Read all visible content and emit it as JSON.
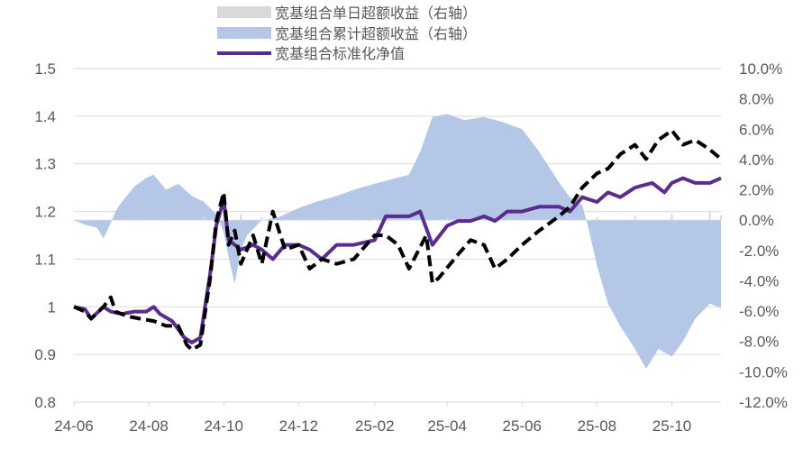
{
  "chart_data": {
    "type": "line",
    "title": "",
    "xlabel": "",
    "ylabel": "",
    "y2label": "",
    "xlim": [
      "2024-06-01",
      "2025-11-10"
    ],
    "ylim": [
      0.8,
      1.5
    ],
    "y2lim": [
      -0.12,
      0.1
    ],
    "x_ticks": [
      "24-06",
      "24-08",
      "24-10",
      "24-12",
      "25-02",
      "25-04",
      "25-06",
      "25-08",
      "25-10"
    ],
    "y_ticks": [
      "0.8",
      "0.9",
      "1",
      "1.1",
      "1.2",
      "1.3",
      "1.4",
      "1.5"
    ],
    "y2_ticks": [
      "-12.0%",
      "-10.0%",
      "-8.0%",
      "-6.0%",
      "-4.0%",
      "-2.0%",
      "0.0%",
      "2.0%",
      "4.0%",
      "6.0%",
      "8.0%",
      "10.0%"
    ],
    "legend_position": "top-center",
    "grid": "horizontal",
    "colors": {
      "daily_excess": "#d9d9d9",
      "cumulative_excess": "#b4c7e7",
      "nav": "#5b2c8f",
      "benchmark": "#000000",
      "axis": "#d9d9d9",
      "text": "#595959"
    },
    "series": [
      {
        "name": "宽基组合单日超额收益（右轴）",
        "type": "bar",
        "axis": "right",
        "points": [
          [
            "2024-06-01",
            0.0
          ],
          [
            "2024-07-01",
            0.0005
          ],
          [
            "2024-08-01",
            0.0005
          ],
          [
            "2024-09-01",
            0.0005
          ],
          [
            "2024-09-15",
            0.002
          ],
          [
            "2024-10-01",
            0.006
          ],
          [
            "2024-10-15",
            0.004
          ],
          [
            "2024-11-01",
            0.002
          ],
          [
            "2024-12-01",
            0.001
          ],
          [
            "2025-01-01",
            0.0005
          ],
          [
            "2025-02-01",
            0.001
          ],
          [
            "2025-03-01",
            0.001
          ],
          [
            "2025-04-01",
            0.0015
          ],
          [
            "2025-05-01",
            0.001
          ],
          [
            "2025-06-01",
            0.001
          ],
          [
            "2025-07-01",
            0.001
          ],
          [
            "2025-08-01",
            0.002
          ],
          [
            "2025-09-01",
            0.003
          ],
          [
            "2025-10-01",
            0.004
          ],
          [
            "2025-11-01",
            0.006
          ],
          [
            "2025-11-10",
            0.003
          ]
        ]
      },
      {
        "name": "宽基组合累计超额收益（右轴）",
        "type": "area",
        "axis": "right",
        "points": [
          [
            "2024-06-01",
            0.0
          ],
          [
            "2024-06-10",
            -0.003
          ],
          [
            "2024-06-20",
            -0.005
          ],
          [
            "2024-06-25",
            -0.012
          ],
          [
            "2024-07-01",
            -0.002
          ],
          [
            "2024-07-05",
            0.006
          ],
          [
            "2024-07-10",
            0.012
          ],
          [
            "2024-07-20",
            0.022
          ],
          [
            "2024-07-30",
            0.028
          ],
          [
            "2024-08-05",
            0.03
          ],
          [
            "2024-08-15",
            0.02
          ],
          [
            "2024-08-25",
            0.024
          ],
          [
            "2024-09-05",
            0.016
          ],
          [
            "2024-09-15",
            0.012
          ],
          [
            "2024-09-25",
            0.004
          ],
          [
            "2024-10-01",
            -0.008
          ],
          [
            "2024-10-06",
            -0.028
          ],
          [
            "2024-10-10",
            -0.042
          ],
          [
            "2024-10-15",
            -0.02
          ],
          [
            "2024-10-20",
            -0.01
          ],
          [
            "2024-11-01",
            0.0
          ],
          [
            "2024-11-15",
            0.002
          ],
          [
            "2024-12-01",
            0.008
          ],
          [
            "2024-12-15",
            0.012
          ],
          [
            "2025-01-01",
            0.016
          ],
          [
            "2025-01-15",
            0.02
          ],
          [
            "2025-02-01",
            0.024
          ],
          [
            "2025-02-15",
            0.027
          ],
          [
            "2025-03-01",
            0.03
          ],
          [
            "2025-03-10",
            0.045
          ],
          [
            "2025-03-20",
            0.068
          ],
          [
            "2025-04-01",
            0.07
          ],
          [
            "2025-04-15",
            0.066
          ],
          [
            "2025-05-01",
            0.068
          ],
          [
            "2025-05-15",
            0.065
          ],
          [
            "2025-06-01",
            0.06
          ],
          [
            "2025-06-15",
            0.045
          ],
          [
            "2025-07-01",
            0.025
          ],
          [
            "2025-07-10",
            0.015
          ],
          [
            "2025-07-20",
            0.01
          ],
          [
            "2025-07-25",
            -0.005
          ],
          [
            "2025-08-01",
            -0.03
          ],
          [
            "2025-08-10",
            -0.055
          ],
          [
            "2025-08-20",
            -0.07
          ],
          [
            "2025-09-01",
            -0.085
          ],
          [
            "2025-09-10",
            -0.098
          ],
          [
            "2025-09-20",
            -0.085
          ],
          [
            "2025-10-01",
            -0.09
          ],
          [
            "2025-10-10",
            -0.08
          ],
          [
            "2025-10-20",
            -0.065
          ],
          [
            "2025-11-01",
            -0.055
          ],
          [
            "2025-11-10",
            -0.058
          ]
        ]
      },
      {
        "name": "宽基组合标准化净值",
        "type": "line",
        "axis": "left",
        "points": [
          [
            "2024-06-01",
            1.0
          ],
          [
            "2024-06-10",
            0.995
          ],
          [
            "2024-06-15",
            0.975
          ],
          [
            "2024-06-25",
            1.0
          ],
          [
            "2024-07-01",
            0.99
          ],
          [
            "2024-07-10",
            0.985
          ],
          [
            "2024-07-20",
            0.99
          ],
          [
            "2024-07-30",
            0.99
          ],
          [
            "2024-08-05",
            1.0
          ],
          [
            "2024-08-10",
            0.985
          ],
          [
            "2024-08-20",
            0.97
          ],
          [
            "2024-08-30",
            0.935
          ],
          [
            "2024-09-05",
            0.925
          ],
          [
            "2024-09-12",
            0.935
          ],
          [
            "2024-09-20",
            1.07
          ],
          [
            "2024-09-25",
            1.17
          ],
          [
            "2024-10-01",
            1.225
          ],
          [
            "2024-10-05",
            1.14
          ],
          [
            "2024-10-15",
            1.12
          ],
          [
            "2024-10-25",
            1.13
          ],
          [
            "2024-11-01",
            1.12
          ],
          [
            "2024-11-10",
            1.1
          ],
          [
            "2024-11-20",
            1.13
          ],
          [
            "2024-12-01",
            1.13
          ],
          [
            "2024-12-10",
            1.12
          ],
          [
            "2024-12-20",
            1.1
          ],
          [
            "2025-01-01",
            1.13
          ],
          [
            "2025-01-15",
            1.13
          ],
          [
            "2025-02-01",
            1.14
          ],
          [
            "2025-02-10",
            1.19
          ],
          [
            "2025-02-20",
            1.19
          ],
          [
            "2025-03-01",
            1.19
          ],
          [
            "2025-03-10",
            1.2
          ],
          [
            "2025-03-20",
            1.13
          ],
          [
            "2025-04-01",
            1.17
          ],
          [
            "2025-04-10",
            1.18
          ],
          [
            "2025-04-20",
            1.18
          ],
          [
            "2025-05-01",
            1.19
          ],
          [
            "2025-05-10",
            1.18
          ],
          [
            "2025-05-20",
            1.2
          ],
          [
            "2025-06-01",
            1.2
          ],
          [
            "2025-06-15",
            1.21
          ],
          [
            "2025-07-01",
            1.21
          ],
          [
            "2025-07-10",
            1.2
          ],
          [
            "2025-07-20",
            1.23
          ],
          [
            "2025-08-01",
            1.22
          ],
          [
            "2025-08-10",
            1.24
          ],
          [
            "2025-08-20",
            1.23
          ],
          [
            "2025-09-01",
            1.25
          ],
          [
            "2025-09-15",
            1.26
          ],
          [
            "2025-09-25",
            1.24
          ],
          [
            "2025-10-01",
            1.26
          ],
          [
            "2025-10-10",
            1.27
          ],
          [
            "2025-10-20",
            1.26
          ],
          [
            "2025-11-01",
            1.26
          ],
          [
            "2025-11-10",
            1.27
          ]
        ]
      },
      {
        "type": "line",
        "axis": "left",
        "style": "dashed",
        "points": [
          [
            "2024-06-01",
            1.0
          ],
          [
            "2024-06-10",
            0.99
          ],
          [
            "2024-06-15",
            0.975
          ],
          [
            "2024-06-25",
            1.0
          ],
          [
            "2024-07-01",
            1.02
          ],
          [
            "2024-07-05",
            0.99
          ],
          [
            "2024-07-15",
            0.98
          ],
          [
            "2024-07-25",
            0.975
          ],
          [
            "2024-08-05",
            0.97
          ],
          [
            "2024-08-15",
            0.96
          ],
          [
            "2024-08-25",
            0.96
          ],
          [
            "2024-09-01",
            0.92
          ],
          [
            "2024-09-05",
            0.91
          ],
          [
            "2024-09-12",
            0.92
          ],
          [
            "2024-09-20",
            1.06
          ],
          [
            "2024-09-25",
            1.18
          ],
          [
            "2024-10-01",
            1.24
          ],
          [
            "2024-10-05",
            1.13
          ],
          [
            "2024-10-10",
            1.16
          ],
          [
            "2024-10-15",
            1.09
          ],
          [
            "2024-10-25",
            1.15
          ],
          [
            "2024-11-01",
            1.09
          ],
          [
            "2024-11-10",
            1.2
          ],
          [
            "2024-11-20",
            1.12
          ],
          [
            "2024-12-01",
            1.13
          ],
          [
            "2024-12-10",
            1.08
          ],
          [
            "2024-12-20",
            1.1
          ],
          [
            "2025-01-01",
            1.09
          ],
          [
            "2025-01-15",
            1.1
          ],
          [
            "2025-02-01",
            1.15
          ],
          [
            "2025-02-10",
            1.15
          ],
          [
            "2025-02-20",
            1.13
          ],
          [
            "2025-03-01",
            1.08
          ],
          [
            "2025-03-15",
            1.15
          ],
          [
            "2025-03-20",
            1.05
          ],
          [
            "2025-03-25",
            1.06
          ],
          [
            "2025-04-10",
            1.11
          ],
          [
            "2025-04-20",
            1.14
          ],
          [
            "2025-05-01",
            1.13
          ],
          [
            "2025-05-10",
            1.08
          ],
          [
            "2025-05-20",
            1.1
          ],
          [
            "2025-06-01",
            1.13
          ],
          [
            "2025-06-15",
            1.16
          ],
          [
            "2025-07-01",
            1.19
          ],
          [
            "2025-07-10",
            1.21
          ],
          [
            "2025-07-20",
            1.25
          ],
          [
            "2025-08-01",
            1.28
          ],
          [
            "2025-08-10",
            1.29
          ],
          [
            "2025-08-20",
            1.32
          ],
          [
            "2025-09-01",
            1.34
          ],
          [
            "2025-09-10",
            1.31
          ],
          [
            "2025-09-20",
            1.35
          ],
          [
            "2025-10-01",
            1.37
          ],
          [
            "2025-10-10",
            1.34
          ],
          [
            "2025-10-20",
            1.35
          ],
          [
            "2025-11-01",
            1.33
          ],
          [
            "2025-11-10",
            1.31
          ]
        ]
      }
    ]
  }
}
